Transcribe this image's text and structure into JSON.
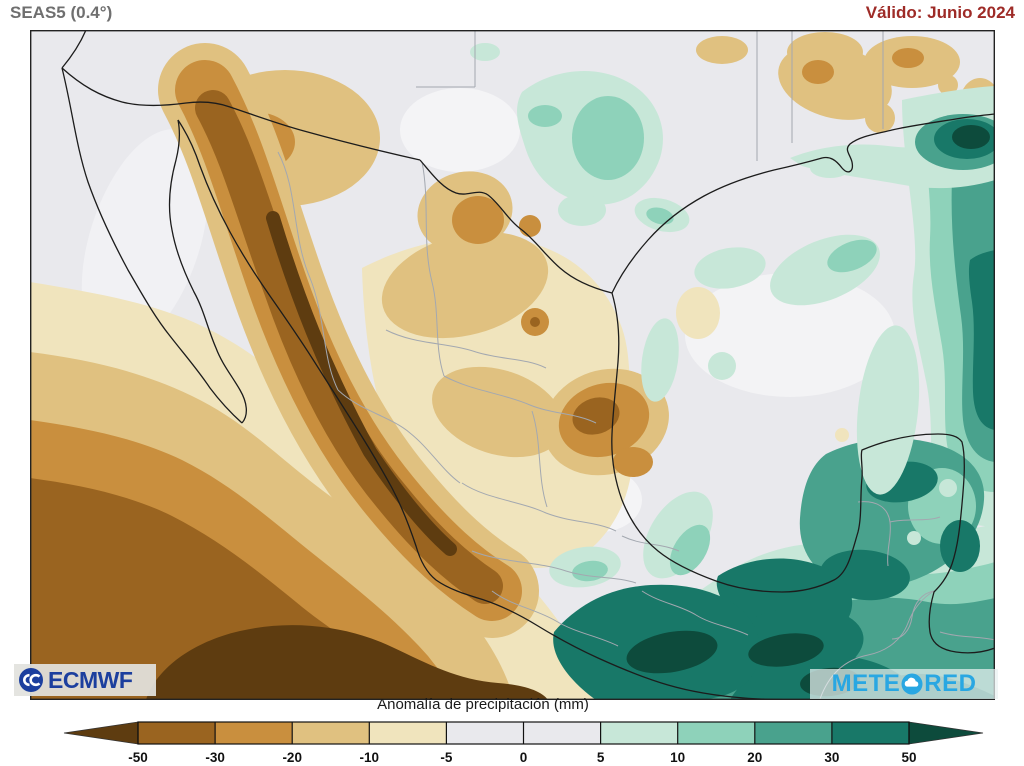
{
  "header": {
    "model_label": "SEAS5 (0.4°)",
    "valid_label": "Válido: Junio 2024",
    "model_color": "#6f6f6f",
    "valid_color": "#9e2b27"
  },
  "map": {
    "subject": "Precipitation anomaly forecast map of Mexico and surrounding region"
  },
  "logos": {
    "ecmwf": {
      "text": "ECMWF",
      "color": "#1c3f9e"
    },
    "meteored": {
      "text_left": "METE",
      "text_right": "RED",
      "color": "#29a7e2"
    }
  },
  "palette": {
    "lt_m50": "#5e3c10",
    "m50_m30": "#9a6420",
    "m30_m20": "#c98f3e",
    "m20_m10": "#e0c180",
    "m10_m5": "#f0e4bd",
    "m5_p5": "#e9e9ed",
    "p5_p10": "#c7e7d8",
    "p10_p20": "#8ed2ba",
    "p20_p30": "#49a28d",
    "p30_p50": "#187868",
    "gt_p50": "#0d4b3c"
  },
  "colorbar": {
    "title": "Anomalía de precipitación (mm)",
    "tick_values": [
      "-50",
      "-30",
      "-20",
      "-10",
      "-5",
      "0",
      "5",
      "10",
      "20",
      "30",
      "50"
    ],
    "segment_colors": [
      "#9a6420",
      "#c98f3e",
      "#e0c180",
      "#f0e4bd",
      "#e9e9ed",
      "#e9e9ed",
      "#c7e7d8",
      "#8ed2ba",
      "#49a28d",
      "#187868"
    ],
    "left_arrow_color": "#5e3c10",
    "right_arrow_color": "#0d4b3c"
  }
}
